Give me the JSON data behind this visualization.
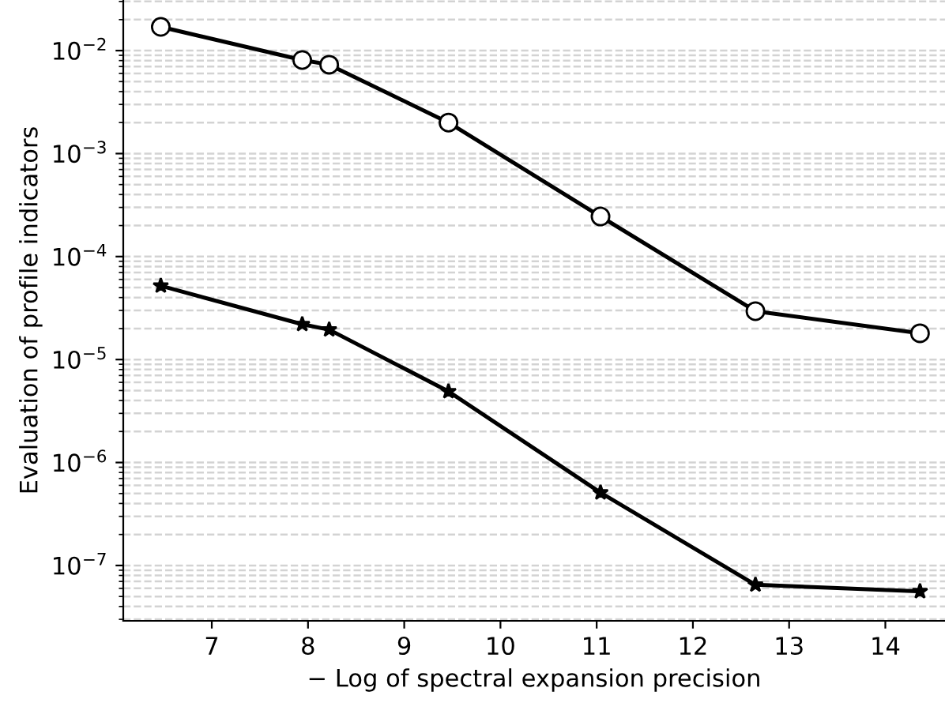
{
  "chart_data": {
    "type": "line",
    "xlabel": "− Log of spectral expansion precision",
    "ylabel": "Evaluation of profile indicators",
    "log": "y",
    "grid": "y",
    "legend": false,
    "x": [
      6.47,
      7.94,
      8.22,
      9.46,
      11.04,
      12.65,
      14.36
    ],
    "series": [
      {
        "color": "#000000",
        "marker": "circle",
        "values": [
          0.017,
          0.0081,
          0.0073,
          0.002,
          0.000245,
          2.95e-05,
          1.8e-05
        ]
      },
      {
        "color": "#000000",
        "marker": "star",
        "values": [
          5.2e-05,
          2.2e-05,
          1.95e-05,
          4.9e-06,
          5.1e-07,
          6.5e-08,
          5.6e-08
        ]
      }
    ],
    "xlim": [
      6.08,
      14.62
    ],
    "xticks": [
      7,
      8,
      9,
      10,
      11,
      12,
      13,
      14
    ],
    "ylim": [
      2.9e-08,
      0.031
    ],
    "yticks": [
      {
        "value": 1e-07,
        "label": "10$^{−7}$"
      },
      {
        "value": 1e-06,
        "label": "10$^{−6}$"
      },
      {
        "value": 1e-05,
        "label": "10$^{−5}$"
      },
      {
        "value": 0.0001,
        "label": "10$^{−4}$"
      },
      {
        "value": 0.001,
        "label": "10$^{−3}$"
      },
      {
        "value": 0.01,
        "label": "10$^{−2}$"
      }
    ]
  }
}
